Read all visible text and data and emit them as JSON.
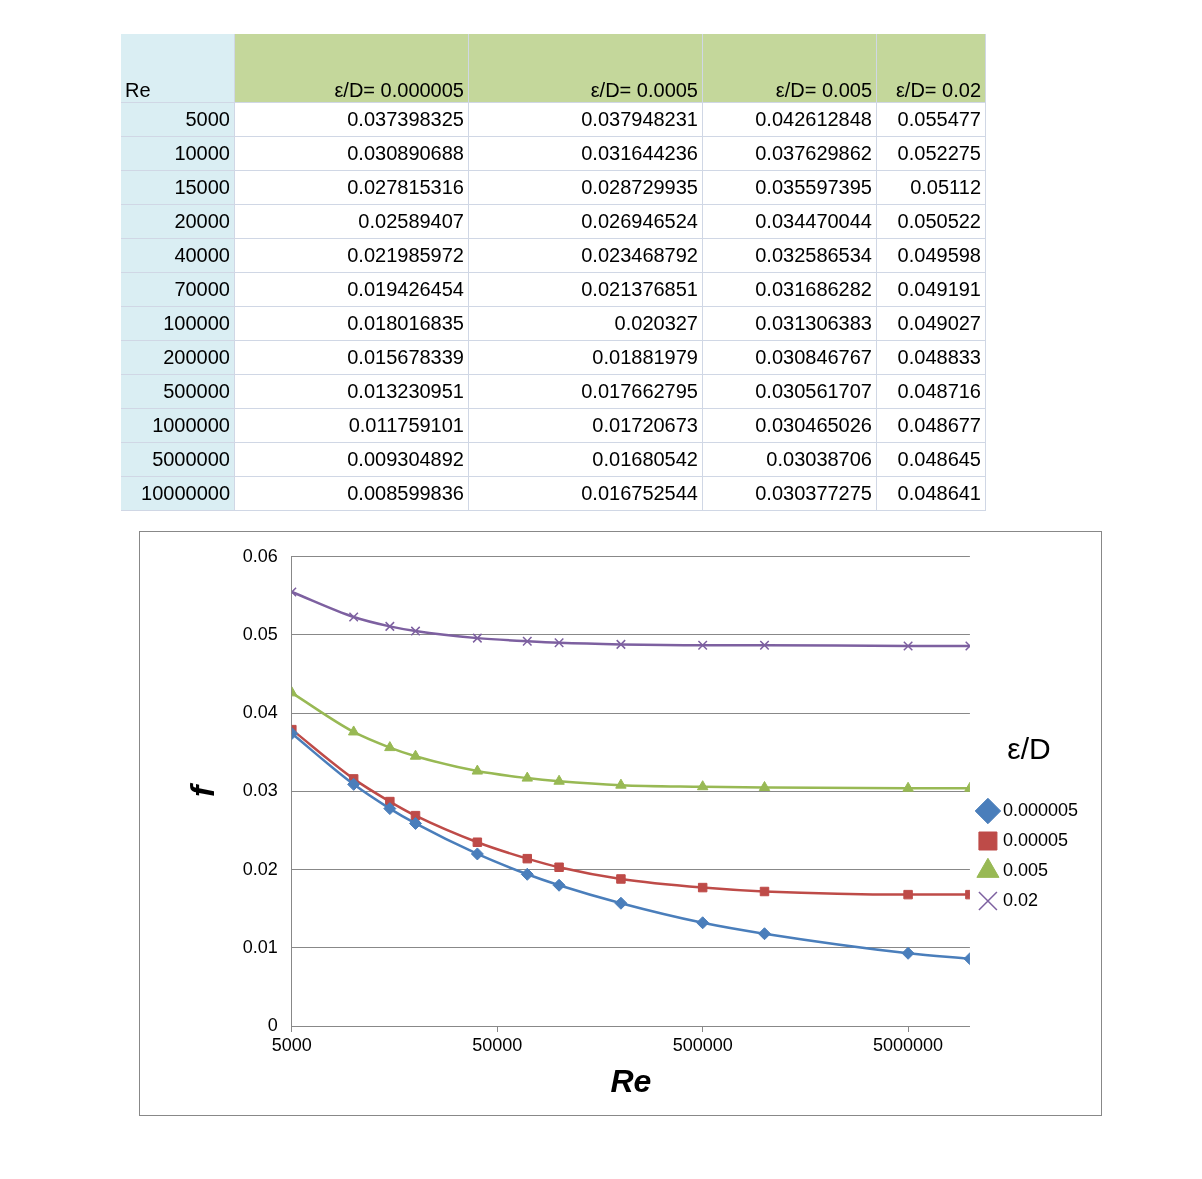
{
  "chart_data": [
    {
      "type": "heatmap",
      "ylabel": "Re",
      "data_labels": true,
      "categories": [
        "ε/D= 0.000005",
        "ε/D= 0.0005",
        "ε/D= 0.005",
        "ε/D= 0.02"
      ],
      "y_categories": [
        "5000",
        "10000",
        "15000",
        "20000",
        "40000",
        "70000",
        "100000",
        "200000",
        "500000",
        "1000000",
        "5000000",
        "10000000"
      ],
      "cells": [
        [
          0.037398325,
          0.037948231,
          0.042612848,
          0.055477
        ],
        [
          0.030890688,
          0.031644236,
          0.037629862,
          0.052275
        ],
        [
          0.027815316,
          0.028729935,
          0.035597395,
          0.05112
        ],
        [
          0.02589407,
          0.026946524,
          0.034470044,
          0.050522
        ],
        [
          0.021985972,
          0.023468792,
          0.032586534,
          0.049598
        ],
        [
          0.019426454,
          0.021376851,
          0.031686282,
          0.049191
        ],
        [
          0.018016835,
          0.020327,
          0.031306383,
          0.049027
        ],
        [
          0.015678339,
          0.01881979,
          0.030846767,
          0.048833
        ],
        [
          0.013230951,
          0.017662795,
          0.030561707,
          0.048716
        ],
        [
          0.011759101,
          0.01720673,
          0.030465026,
          0.048677
        ],
        [
          0.009304892,
          0.01680542,
          0.03038706,
          0.048645
        ],
        [
          0.008599836,
          0.016752544,
          0.030377275,
          0.048641
        ]
      ]
    },
    {
      "type": "line",
      "x": [
        5000,
        10000,
        15000,
        20000,
        40000,
        70000,
        100000,
        200000,
        500000,
        1000000,
        5000000,
        10000000
      ],
      "series": [
        {
          "name": "0.000005",
          "color": "#4a7ebb",
          "marker": "diamond",
          "values": [
            0.0374,
            0.0309,
            0.0278,
            0.0259,
            0.022,
            0.0194,
            0.018,
            0.0157,
            0.0132,
            0.0118,
            0.0093,
            0.0086
          ]
        },
        {
          "name": "0.00005",
          "color": "#be4b48",
          "marker": "square",
          "values": [
            0.0379,
            0.0316,
            0.0287,
            0.0269,
            0.0235,
            0.0214,
            0.0203,
            0.0188,
            0.0177,
            0.0172,
            0.0168,
            0.0168
          ]
        },
        {
          "name": "0.005",
          "color": "#98b954",
          "marker": "triangle",
          "values": [
            0.0426,
            0.0376,
            0.0356,
            0.0345,
            0.0326,
            0.0317,
            0.0313,
            0.0308,
            0.0306,
            0.0305,
            0.0304,
            0.0304
          ]
        },
        {
          "name": "0.02",
          "color": "#7d60a0",
          "marker": "cross",
          "values": [
            0.0555,
            0.0523,
            0.0511,
            0.0505,
            0.0496,
            0.0492,
            0.049,
            0.0488,
            0.0487,
            0.0487,
            0.0486,
            0.0486
          ]
        }
      ],
      "xlabel": "Re",
      "ylabel": "f",
      "legend_title": "ε/D",
      "legend": "right",
      "log": "x",
      "xlim": [
        5000,
        10000000
      ],
      "xticks": [
        5000,
        50000,
        500000,
        5000000
      ],
      "ylim": [
        0,
        0.06
      ],
      "yticks": [
        0,
        0.01,
        0.02,
        0.03,
        0.04,
        0.05,
        0.06
      ],
      "grid": "y"
    }
  ]
}
